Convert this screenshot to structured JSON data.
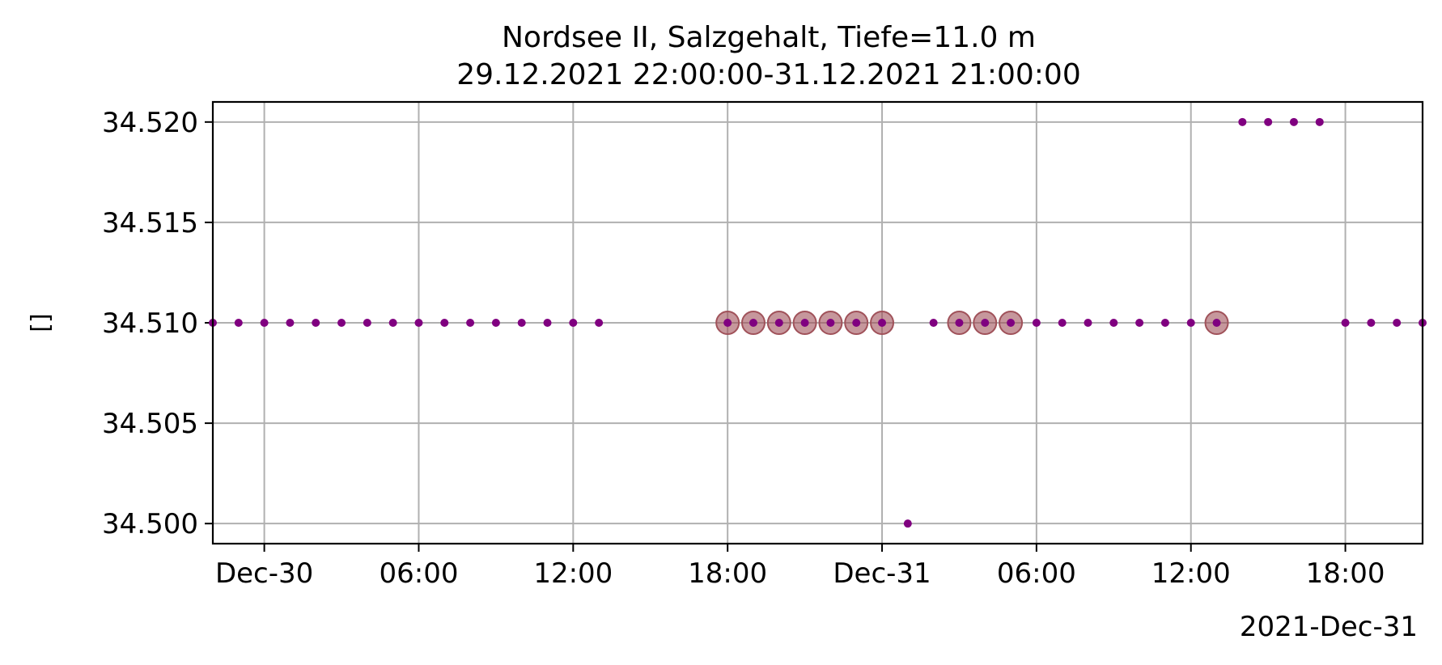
{
  "chart_data": {
    "type": "scatter",
    "title": "Nordsee II, Salzgehalt, Tiefe=11.0 m",
    "subtitle": "29.12.2021 22:00:00-31.12.2021 21:00:00",
    "xlabel": "",
    "ylabel": "[]",
    "x_offset_label": "2021-Dec-31",
    "xlim": [
      "2021-12-29T22:00",
      "2021-12-31T21:00"
    ],
    "ylim": [
      34.499,
      34.521
    ],
    "grid": true,
    "legend": "none",
    "x_ticks": [
      {
        "x": "2021-12-30T00:00",
        "label": "Dec-30"
      },
      {
        "x": "2021-12-30T06:00",
        "label": "06:00"
      },
      {
        "x": "2021-12-30T12:00",
        "label": "12:00"
      },
      {
        "x": "2021-12-30T18:00",
        "label": "18:00"
      },
      {
        "x": "2021-12-31T00:00",
        "label": "Dec-31"
      },
      {
        "x": "2021-12-31T06:00",
        "label": "06:00"
      },
      {
        "x": "2021-12-31T12:00",
        "label": "12:00"
      },
      {
        "x": "2021-12-31T18:00",
        "label": "18:00"
      }
    ],
    "y_ticks": [
      {
        "y": 34.5,
        "label": "34.500"
      },
      {
        "y": 34.505,
        "label": "34.505"
      },
      {
        "y": 34.51,
        "label": "34.510"
      },
      {
        "y": 34.515,
        "label": "34.515"
      },
      {
        "y": 34.52,
        "label": "34.520"
      }
    ],
    "series": [
      {
        "color": "#800080",
        "x": [
          "2021-12-29T22:00",
          "2021-12-29T23:00",
          "2021-12-30T00:00",
          "2021-12-30T01:00",
          "2021-12-30T02:00",
          "2021-12-30T03:00",
          "2021-12-30T04:00",
          "2021-12-30T05:00",
          "2021-12-30T06:00",
          "2021-12-30T07:00",
          "2021-12-30T08:00",
          "2021-12-30T09:00",
          "2021-12-30T10:00",
          "2021-12-30T11:00",
          "2021-12-30T12:00",
          "2021-12-30T13:00",
          "2021-12-30T18:00",
          "2021-12-30T19:00",
          "2021-12-30T20:00",
          "2021-12-30T21:00",
          "2021-12-30T22:00",
          "2021-12-30T23:00",
          "2021-12-31T00:00",
          "2021-12-31T01:00",
          "2021-12-31T02:00",
          "2021-12-31T03:00",
          "2021-12-31T04:00",
          "2021-12-31T05:00",
          "2021-12-31T06:00",
          "2021-12-31T07:00",
          "2021-12-31T08:00",
          "2021-12-31T09:00",
          "2021-12-31T10:00",
          "2021-12-31T11:00",
          "2021-12-31T12:00",
          "2021-12-31T13:00",
          "2021-12-31T14:00",
          "2021-12-31T15:00",
          "2021-12-31T16:00",
          "2021-12-31T17:00",
          "2021-12-31T18:00",
          "2021-12-31T19:00",
          "2021-12-31T20:00",
          "2021-12-31T21:00"
        ],
        "y": [
          34.51,
          34.51,
          34.51,
          34.51,
          34.51,
          34.51,
          34.51,
          34.51,
          34.51,
          34.51,
          34.51,
          34.51,
          34.51,
          34.51,
          34.51,
          34.51,
          34.51,
          34.51,
          34.51,
          34.51,
          34.51,
          34.51,
          34.51,
          34.5,
          34.51,
          34.51,
          34.51,
          34.51,
          34.51,
          34.51,
          34.51,
          34.51,
          34.51,
          34.51,
          34.51,
          34.51,
          34.52,
          34.52,
          34.52,
          34.52,
          34.51,
          34.51,
          34.51,
          34.51
        ]
      },
      {
        "color": "#a0525a",
        "x": [
          "2021-12-30T18:00",
          "2021-12-30T19:00",
          "2021-12-30T20:00",
          "2021-12-30T21:00",
          "2021-12-30T22:00",
          "2021-12-30T23:00",
          "2021-12-31T00:00",
          "2021-12-31T03:00",
          "2021-12-31T04:00",
          "2021-12-31T05:00",
          "2021-12-31T13:00"
        ],
        "y": [
          34.51,
          34.51,
          34.51,
          34.51,
          34.51,
          34.51,
          34.51,
          34.51,
          34.51,
          34.51,
          34.51
        ]
      }
    ]
  }
}
